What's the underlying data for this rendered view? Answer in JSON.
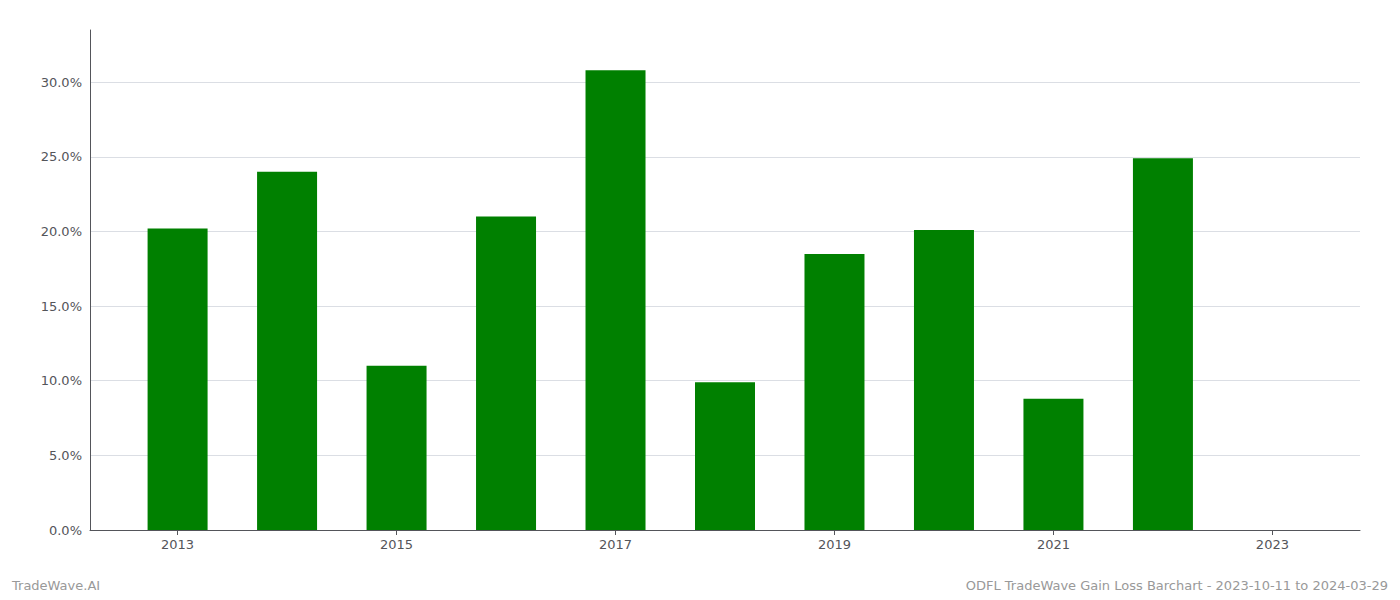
{
  "chart_data": {
    "type": "bar",
    "x": [
      2013,
      2014,
      2015,
      2016,
      2017,
      2018,
      2019,
      2020,
      2021,
      2022
    ],
    "values": [
      0.202,
      0.24,
      0.11,
      0.21,
      0.308,
      0.099,
      0.185,
      0.201,
      0.088,
      0.249
    ],
    "color": "#008000",
    "xlim": [
      2012.2,
      2023.8
    ],
    "xticks": [
      2013,
      2015,
      2017,
      2019,
      2021,
      2023
    ],
    "ylim": [
      0,
      0.335
    ],
    "yticks": [
      {
        "value": 0.0,
        "label": "0.0%"
      },
      {
        "value": 0.05,
        "label": "5.0%"
      },
      {
        "value": 0.1,
        "label": "10.0%"
      },
      {
        "value": 0.15,
        "label": "15.0%"
      },
      {
        "value": 0.2,
        "label": "20.0%"
      },
      {
        "value": 0.25,
        "label": "25.0%"
      },
      {
        "value": 0.3,
        "label": "30.0%"
      }
    ],
    "grid": true,
    "annotations": [
      "TradeWave.AI",
      "ODFL TradeWave Gain Loss Barchart - 2023-10-11 to 2024-03-29"
    ]
  }
}
